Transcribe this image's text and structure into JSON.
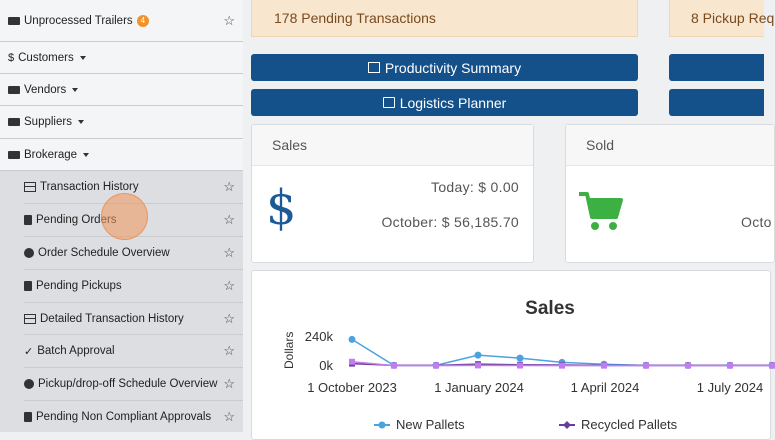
{
  "sidebar": {
    "top_items": [
      {
        "label": "Unprocessed Trailers",
        "badge": "4",
        "icon": "truck-icon",
        "starred": false
      },
      {
        "label": "Customers",
        "icon": "dollar-icon"
      },
      {
        "label": "Vendors",
        "icon": "truck-icon"
      },
      {
        "label": "Suppliers",
        "icon": "truck-icon"
      },
      {
        "label": "Brokerage",
        "icon": "truck-icon"
      }
    ],
    "sub_items": [
      {
        "label": "Transaction History",
        "icon": "table-icon"
      },
      {
        "label": "Pending Orders",
        "icon": "clipboard-icon"
      },
      {
        "label": "Order Schedule Overview",
        "icon": "clock-icon"
      },
      {
        "label": "Pending Pickups",
        "icon": "clipboard-icon"
      },
      {
        "label": "Detailed Transaction History",
        "icon": "table-icon"
      },
      {
        "label": "Batch Approval",
        "icon": "check-icon"
      },
      {
        "label": "Pickup/drop-off Schedule Overview",
        "icon": "clock-icon"
      },
      {
        "label": "Pending Non Compliant Approvals",
        "icon": "clipboard-icon"
      }
    ],
    "star_glyph": "☆",
    "dollar_glyph": "$",
    "check_glyph": "✓"
  },
  "alerts": {
    "pending_transactions": "178 Pending Transactions",
    "pickup_requests": "8 Pickup Req"
  },
  "buttons": {
    "productivity_summary": "Productivity Summary",
    "logistics_planner": "Logistics Planner"
  },
  "sales_card": {
    "title": "Sales",
    "today": "Today: $ 0.00",
    "month": "October: $ 56,185.70",
    "icon_glyph": "$"
  },
  "sold_card": {
    "title": "Sold",
    "month_partial": "Octo"
  },
  "colors": {
    "primary": "#14508a",
    "alert_bg": "#f8e6cf",
    "cart_green": "#3cb043",
    "new_pallets": "#4aa3df",
    "recycled_pallets": "#6a3d9a",
    "third_series": "#c27cf0"
  },
  "chart_data": {
    "type": "line",
    "title": "Sales",
    "ylabel": "Dollars",
    "xlabel": "",
    "y_ticks": [
      "240k",
      "0k"
    ],
    "x_ticks": [
      "1 October 2023",
      "1 January 2024",
      "1 April 2024",
      "1 July 2024"
    ],
    "ylim": [
      0,
      240000
    ],
    "x": [
      "2023-10-01",
      "2023-11-01",
      "2023-12-01",
      "2024-01-01",
      "2024-02-01",
      "2024-03-01",
      "2024-04-01",
      "2024-05-01",
      "2024-06-01",
      "2024-07-01",
      "2024-08-01"
    ],
    "series": [
      {
        "name": "New Pallets",
        "values": [
          220000,
          5000,
          5000,
          90000,
          65000,
          30000,
          15000,
          5000,
          5000,
          5000,
          5000
        ]
      },
      {
        "name": "Recycled Pallets",
        "values": [
          20000,
          5000,
          5000,
          15000,
          10000,
          8000,
          5000,
          5000,
          5000,
          5000,
          5000
        ]
      },
      {
        "values": [
          35000,
          3000,
          3000,
          5000,
          4000,
          3000,
          3000,
          3000,
          3000,
          3000,
          3000
        ]
      }
    ],
    "legend": "bottom",
    "grid": false
  }
}
